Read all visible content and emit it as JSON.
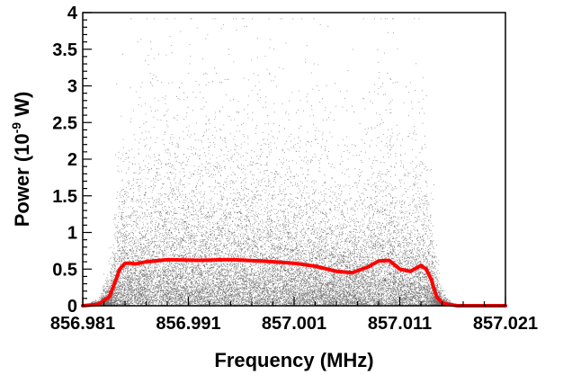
{
  "chart_data": {
    "type": "scatter",
    "title": "",
    "xlabel": "Frequency (MHz)",
    "ylabel_parts": {
      "pre": "Power (10",
      "sup": "-9",
      "post": " W)"
    },
    "xlim": [
      856.981,
      857.021
    ],
    "ylim": [
      0,
      4
    ],
    "xticks": [
      856.981,
      856.991,
      857.001,
      857.011,
      857.021
    ],
    "xtick_labels": [
      "856.981",
      "856.991",
      "857.001",
      "857.011",
      "857.021"
    ],
    "yticks": [
      0,
      0.5,
      1,
      1.5,
      2,
      2.5,
      3,
      3.5,
      4
    ],
    "ytick_labels": [
      "0",
      "0.5",
      "1",
      "1.5",
      "2",
      "2.5",
      "3",
      "3.5",
      "4"
    ],
    "grid": false,
    "colors": {
      "scatter": "#000000",
      "mean_line": "#ff0000"
    },
    "series": [
      {
        "kind": "mean-line",
        "x": [
          856.981,
          856.9825,
          856.9835,
          856.984,
          856.9845,
          856.985,
          856.9855,
          856.986,
          856.987,
          856.989,
          856.992,
          856.995,
          856.998,
          857.001,
          857.003,
          857.005,
          857.0065,
          857.008,
          857.009,
          857.01,
          857.011,
          857.012,
          857.013,
          857.0135,
          857.014,
          857.0142,
          857.0145,
          857.015,
          857.0155,
          857.016,
          857.0165,
          857.017,
          857.018,
          857.019,
          857.02,
          857.021
        ],
        "y": [
          0.0,
          0.02,
          0.12,
          0.3,
          0.5,
          0.58,
          0.58,
          0.57,
          0.6,
          0.63,
          0.62,
          0.63,
          0.61,
          0.58,
          0.54,
          0.47,
          0.45,
          0.53,
          0.61,
          0.62,
          0.5,
          0.47,
          0.55,
          0.5,
          0.35,
          0.25,
          0.12,
          0.04,
          0.02,
          0.01,
          0.0,
          0.0,
          0.0,
          0.0,
          0.0,
          0.0
        ]
      }
    ]
  }
}
